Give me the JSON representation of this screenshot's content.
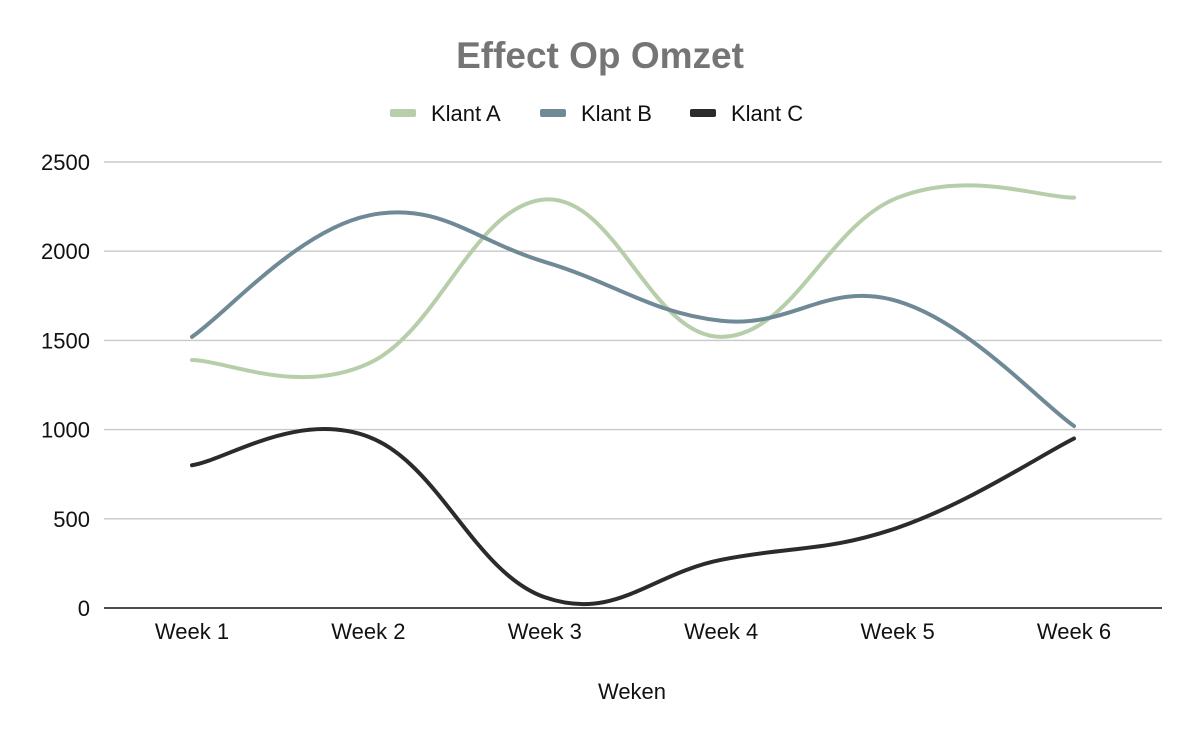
{
  "chart_data": {
    "type": "line",
    "title": "Effect Op Omzet",
    "xlabel": "Weken",
    "ylabel": "",
    "categories": [
      "Week 1",
      "Week 2",
      "Week 3",
      "Week 4",
      "Week 5",
      "Week 6"
    ],
    "ylim": [
      0,
      2500
    ],
    "yticks": [
      0,
      500,
      1000,
      1500,
      2000,
      2500
    ],
    "grid": true,
    "legend_position": "top",
    "smooth": true,
    "series": [
      {
        "name": "Klant A",
        "color": "#b7ceab",
        "values": [
          1390,
          1370,
          2290,
          1520,
          2300,
          2300
        ]
      },
      {
        "name": "Klant B",
        "color": "#6f8a96",
        "values": [
          1520,
          2200,
          1940,
          1610,
          1720,
          1020
        ]
      },
      {
        "name": "Klant C",
        "color": "#2b2b2b",
        "values": [
          800,
          960,
          60,
          270,
          450,
          950
        ]
      }
    ]
  }
}
